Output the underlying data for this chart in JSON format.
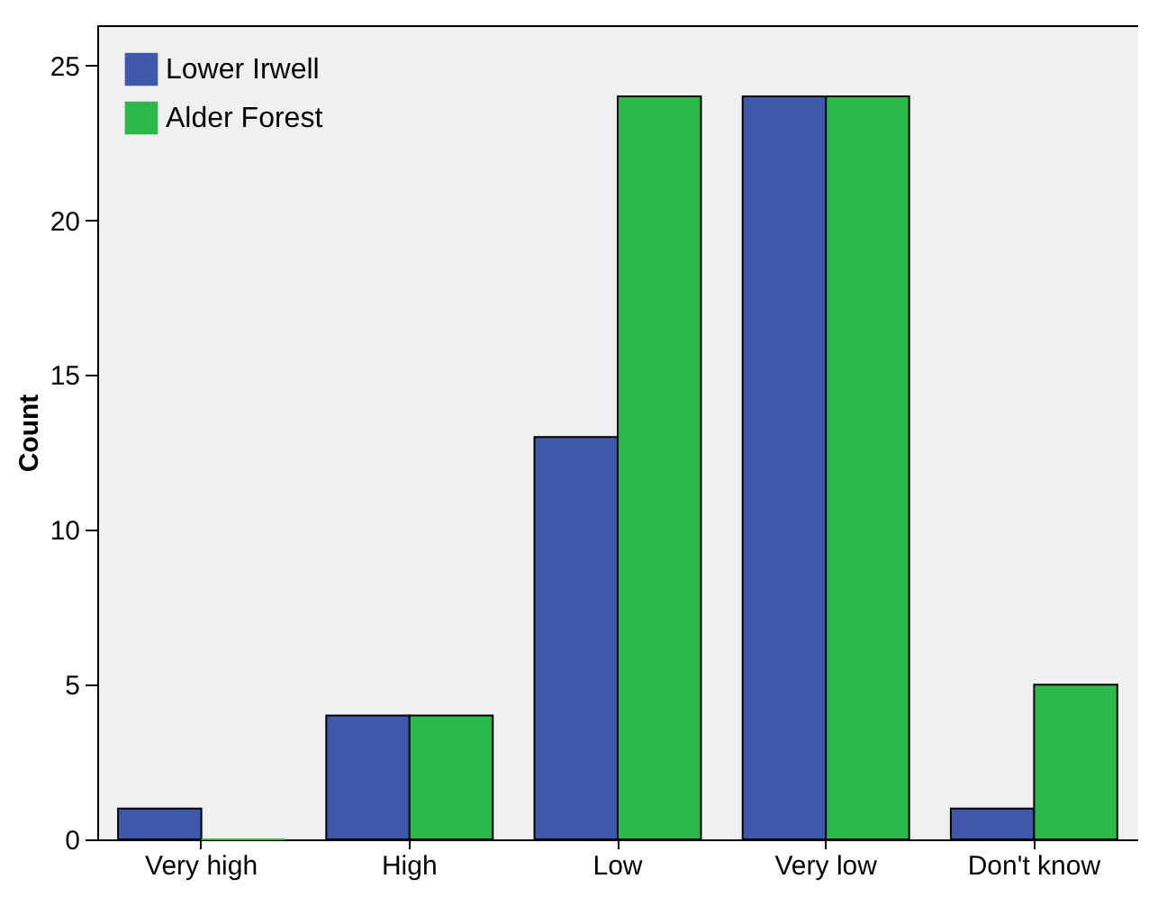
{
  "chart_data": {
    "type": "bar",
    "ylabel": "Count",
    "categories": [
      "Very high",
      "High",
      "Low",
      "Very low",
      "Don't know"
    ],
    "series": [
      {
        "name": "Lower Irwell",
        "color": "#3e58ac",
        "values": [
          1,
          4,
          13,
          24,
          1
        ]
      },
      {
        "name": "Alder Forest",
        "color": "#2db84b",
        "values": [
          0,
          4,
          24,
          24,
          5
        ]
      }
    ],
    "ylim": [
      0,
      26.3
    ],
    "yticks": [
      0,
      5,
      10,
      15,
      20,
      25
    ],
    "grid": false,
    "legend": "top left"
  }
}
